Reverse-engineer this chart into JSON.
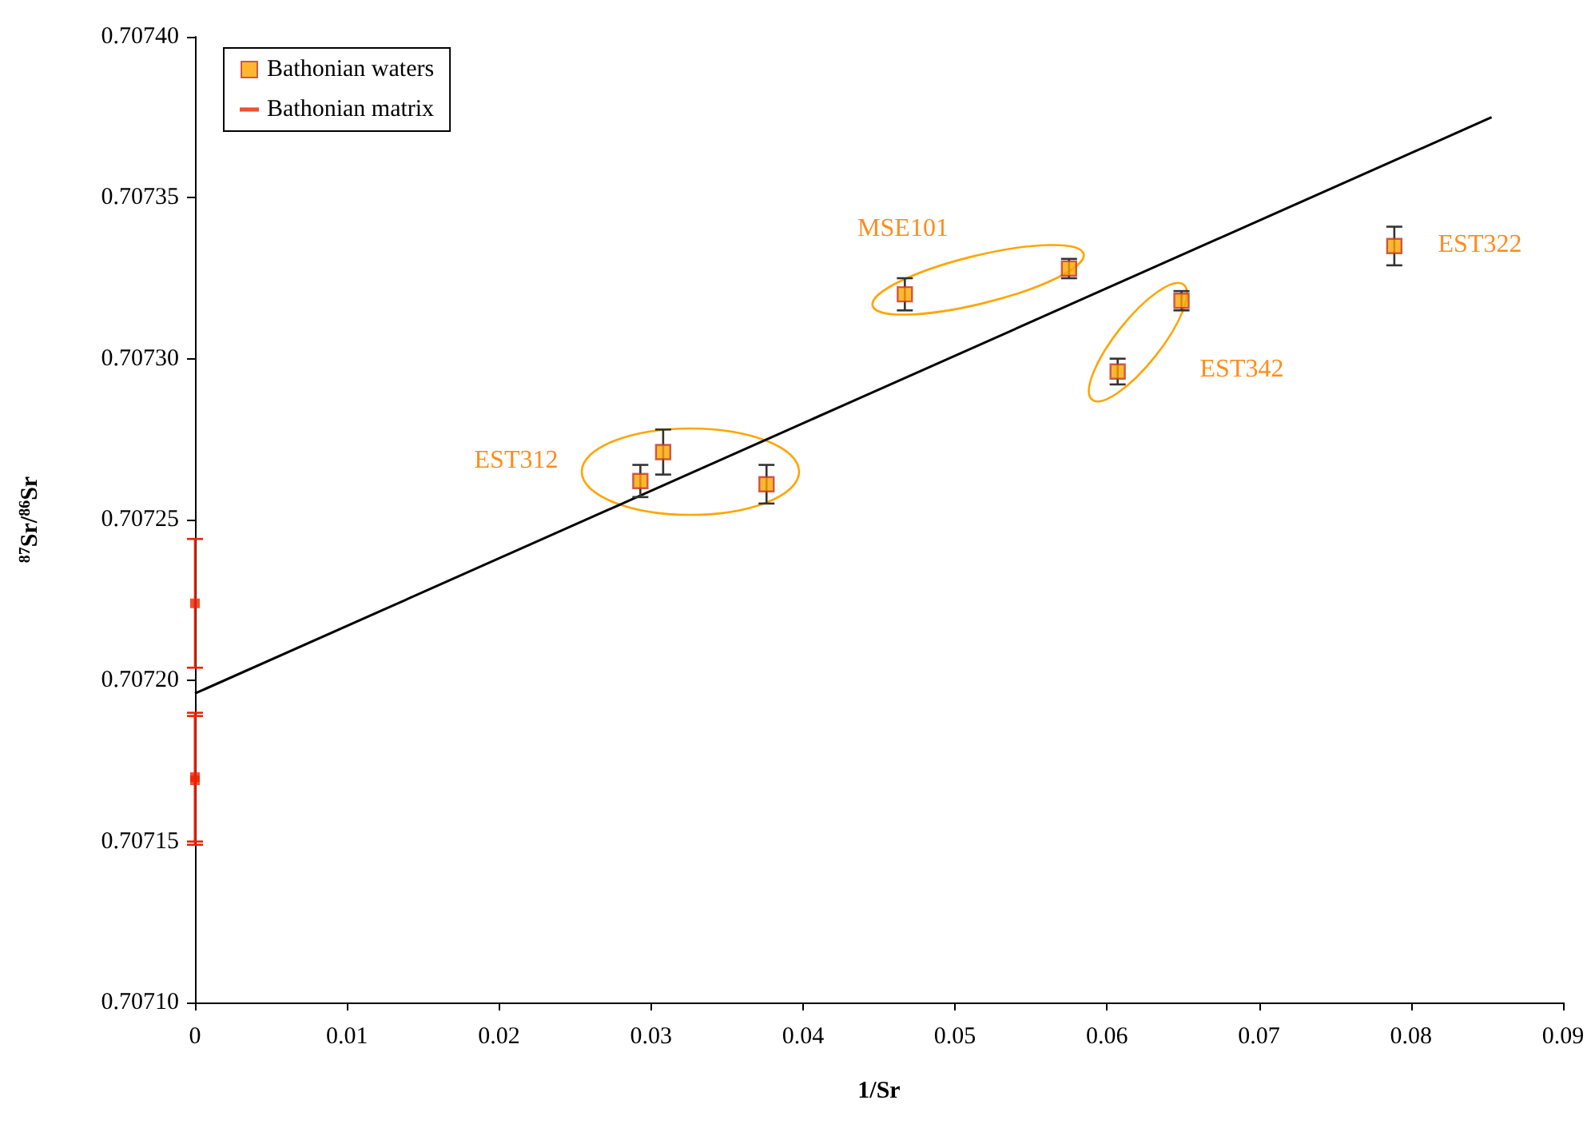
{
  "chart_data": {
    "type": "scatter",
    "xlabel": "1/Sr",
    "ylabel": "$^{87}$Sr/$^{86}$Sr",
    "xlim": [
      0,
      0.09
    ],
    "xticks": [
      0,
      0.01,
      0.02,
      0.03,
      0.04,
      0.05,
      0.06,
      0.07,
      0.08,
      0.09
    ],
    "ylim": [
      0.7071,
      0.7074
    ],
    "yticks": [
      {
        "value": 0.7071,
        "label": "0.70710"
      },
      {
        "value": 0.70715,
        "label": "0.70715"
      },
      {
        "value": 0.7072,
        "label": "0.70720"
      },
      {
        "value": 0.70725,
        "label": "0.70725"
      },
      {
        "value": 0.7073,
        "label": "0.70730"
      },
      {
        "value": 0.70735,
        "label": "0.70735"
      },
      {
        "value": 0.7074,
        "label": "0.70740"
      }
    ],
    "grid": false,
    "legend": "top left",
    "series": [
      {
        "name": "Bathonian waters",
        "marker": "square",
        "color": "#ffa500",
        "x": [
          0.0293,
          0.0308,
          0.0376,
          0.0467,
          0.0575,
          0.0607,
          0.0649,
          0.0789
        ],
        "values": [
          0.707262,
          0.707271,
          0.707261,
          0.70732,
          0.707328,
          0.707296,
          0.707318,
          0.707335
        ],
        "errors": [
          5e-06,
          7e-06,
          6e-06,
          5e-06,
          3e-06,
          4e-06,
          3e-06,
          6e-06
        ]
      },
      {
        "name": "Bathonian matrix",
        "marker": "square",
        "color": "#ee2200",
        "x": [
          0,
          0,
          0
        ],
        "values": [
          0.707224,
          0.70717,
          0.707169
        ],
        "errors": [
          2e-05,
          2e-05,
          2e-05
        ]
      },
      {
        "type": "line",
        "marker": "none",
        "color": "#000000",
        "x": [
          0,
          0.0853
        ],
        "values": [
          0.707196,
          0.707375
        ]
      }
    ],
    "annotations": [
      "EST312",
      "MSE101",
      "EST342",
      "EST322"
    ]
  }
}
